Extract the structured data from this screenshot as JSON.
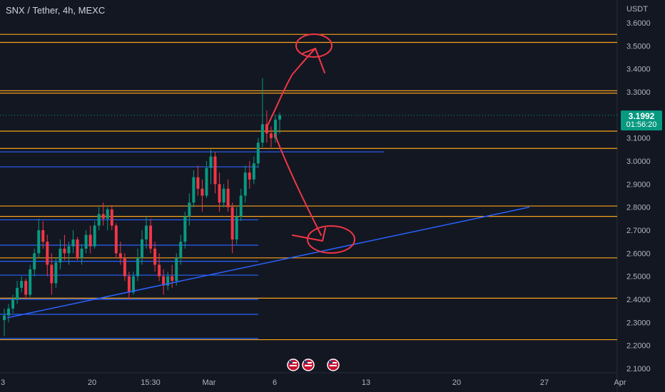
{
  "header": {
    "title": "SNX / Tether, 4h, MEXC"
  },
  "price_axis": {
    "unit_label": "USDT",
    "current_price": "3.1992",
    "countdown": "01:56:20"
  },
  "colors": {
    "background": "#131722",
    "up_candle": "#089981",
    "down_candle": "#f23645",
    "support_resistance": "#f7a21b",
    "trend_line": "#2962ff",
    "annotation": "#f23645"
  },
  "chart_data": {
    "type": "candlestick",
    "title": "SNX / Tether, 4h, MEXC",
    "ylabel": "USDT",
    "ylim": [
      2.05,
      3.65
    ],
    "y_ticks": [
      "3.6000",
      "3.5000",
      "3.4000",
      "3.3000",
      "3.1000",
      "3.0000",
      "2.9000",
      "2.8000",
      "2.7000",
      "2.6000",
      "2.5000",
      "2.4000",
      "2.3000",
      "2.2000",
      "2.1000"
    ],
    "x_ticks": [
      "3",
      "20",
      "15:30",
      "Mar",
      "6",
      "13",
      "20",
      "27",
      "Apr"
    ],
    "grid": false,
    "horizontal_levels": [
      3.55,
      3.515,
      3.305,
      3.295,
      3.13,
      3.055,
      2.805,
      2.76,
      2.58,
      2.405,
      2.225
    ],
    "horizontal_segments": [
      {
        "price": 3.04,
        "x_end_tick": "6"
      },
      {
        "price": 2.975,
        "x_end_tick": "Mar"
      },
      {
        "price": 2.745,
        "x_end_tick": "Mar"
      },
      {
        "price": 2.635,
        "x_end_tick": "Mar"
      },
      {
        "price": 2.565,
        "x_end_tick": "Mar"
      },
      {
        "price": 2.505,
        "x_end_tick": "Mar"
      },
      {
        "price": 2.4,
        "x_end_tick": "Mar"
      },
      {
        "price": 2.335,
        "x_end_tick": "Mar"
      },
      {
        "price": 2.23,
        "x_end_tick": "Mar"
      }
    ],
    "trend_line": {
      "from": {
        "x_tick": "3",
        "price": 2.32
      },
      "to": {
        "x_tick": "27",
        "price": 2.8
      }
    },
    "candles_ohlc": [
      [
        2.31,
        2.36,
        2.24,
        2.33
      ],
      [
        2.33,
        2.38,
        2.3,
        2.36
      ],
      [
        2.36,
        2.42,
        2.34,
        2.4
      ],
      [
        2.4,
        2.48,
        2.38,
        2.45
      ],
      [
        2.45,
        2.5,
        2.43,
        2.48
      ],
      [
        2.48,
        2.49,
        2.4,
        2.42
      ],
      [
        2.42,
        2.55,
        2.41,
        2.53
      ],
      [
        2.53,
        2.62,
        2.5,
        2.6
      ],
      [
        2.6,
        2.75,
        2.58,
        2.7
      ],
      [
        2.7,
        2.74,
        2.62,
        2.65
      ],
      [
        2.65,
        2.68,
        2.5,
        2.55
      ],
      [
        2.55,
        2.6,
        2.42,
        2.47
      ],
      [
        2.47,
        2.58,
        2.45,
        2.56
      ],
      [
        2.56,
        2.66,
        2.53,
        2.62
      ],
      [
        2.62,
        2.68,
        2.57,
        2.6
      ],
      [
        2.6,
        2.65,
        2.55,
        2.63
      ],
      [
        2.63,
        2.7,
        2.6,
        2.66
      ],
      [
        2.66,
        2.67,
        2.57,
        2.58
      ],
      [
        2.58,
        2.64,
        2.55,
        2.62
      ],
      [
        2.62,
        2.7,
        2.6,
        2.68
      ],
      [
        2.68,
        2.72,
        2.6,
        2.63
      ],
      [
        2.63,
        2.74,
        2.62,
        2.72
      ],
      [
        2.72,
        2.8,
        2.7,
        2.77
      ],
      [
        2.77,
        2.82,
        2.72,
        2.75
      ],
      [
        2.75,
        2.8,
        2.7,
        2.79
      ],
      [
        2.79,
        2.81,
        2.7,
        2.72
      ],
      [
        2.72,
        2.73,
        2.58,
        2.6
      ],
      [
        2.6,
        2.65,
        2.55,
        2.58
      ],
      [
        2.58,
        2.6,
        2.48,
        2.5
      ],
      [
        2.5,
        2.52,
        2.4,
        2.43
      ],
      [
        2.43,
        2.52,
        2.42,
        2.5
      ],
      [
        2.5,
        2.62,
        2.48,
        2.58
      ],
      [
        2.58,
        2.7,
        2.55,
        2.66
      ],
      [
        2.66,
        2.76,
        2.62,
        2.72
      ],
      [
        2.72,
        2.75,
        2.6,
        2.62
      ],
      [
        2.62,
        2.65,
        2.52,
        2.55
      ],
      [
        2.55,
        2.6,
        2.48,
        2.5
      ],
      [
        2.5,
        2.53,
        2.42,
        2.46
      ],
      [
        2.46,
        2.52,
        2.44,
        2.5
      ],
      [
        2.5,
        2.55,
        2.45,
        2.48
      ],
      [
        2.48,
        2.6,
        2.46,
        2.58
      ],
      [
        2.58,
        2.68,
        2.55,
        2.65
      ],
      [
        2.65,
        2.78,
        2.62,
        2.76
      ],
      [
        2.76,
        2.86,
        2.72,
        2.82
      ],
      [
        2.82,
        2.96,
        2.8,
        2.93
      ],
      [
        2.93,
        2.98,
        2.85,
        2.88
      ],
      [
        2.88,
        2.92,
        2.78,
        2.85
      ],
      [
        2.85,
        3.0,
        2.84,
        2.97
      ],
      [
        2.97,
        3.05,
        2.9,
        3.02
      ],
      [
        3.02,
        3.04,
        2.86,
        2.9
      ],
      [
        2.9,
        2.95,
        2.78,
        2.82
      ],
      [
        2.82,
        2.9,
        2.8,
        2.88
      ],
      [
        2.88,
        2.92,
        2.78,
        2.8
      ],
      [
        2.8,
        2.82,
        2.6,
        2.66
      ],
      [
        2.66,
        2.8,
        2.64,
        2.76
      ],
      [
        2.76,
        2.88,
        2.74,
        2.85
      ],
      [
        2.85,
        2.98,
        2.82,
        2.95
      ],
      [
        2.95,
        3.0,
        2.88,
        2.92
      ],
      [
        2.92,
        3.02,
        2.9,
        2.99
      ],
      [
        2.99,
        3.1,
        2.97,
        3.08
      ],
      [
        3.08,
        3.36,
        3.06,
        3.16
      ],
      [
        3.16,
        3.22,
        3.08,
        3.12
      ],
      [
        3.12,
        3.15,
        3.06,
        3.1
      ],
      [
        3.1,
        3.2,
        3.08,
        3.18
      ],
      [
        3.18,
        3.21,
        3.12,
        3.1992
      ]
    ]
  }
}
